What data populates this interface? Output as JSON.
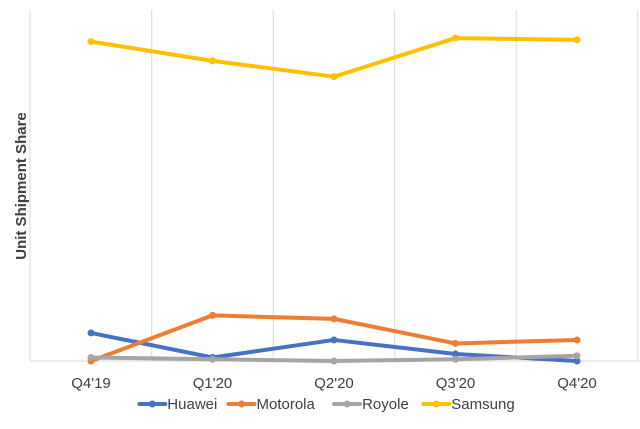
{
  "chart_data": {
    "type": "line",
    "title": "",
    "xlabel": "",
    "ylabel": "Unit Shipment Share",
    "categories": [
      "Q4'19",
      "Q1'20",
      "Q2'20",
      "Q3'20",
      "Q4'20"
    ],
    "ylim": [
      0,
      100
    ],
    "grid": "vertical",
    "legend": "bottom",
    "series": [
      {
        "name": "Huawei",
        "color": "#4472C4",
        "values": [
          8,
          1,
          6,
          2,
          0
        ]
      },
      {
        "name": "Motorola",
        "color": "#ED7D31",
        "values": [
          0,
          13,
          12,
          5,
          6
        ]
      },
      {
        "name": "Royole",
        "color": "#A5A5A5",
        "values": [
          1,
          0.5,
          0,
          0.5,
          1.5
        ]
      },
      {
        "name": "Samsung",
        "color": "#FFC000",
        "values": [
          91,
          85.5,
          81,
          92,
          91.5
        ]
      }
    ]
  }
}
